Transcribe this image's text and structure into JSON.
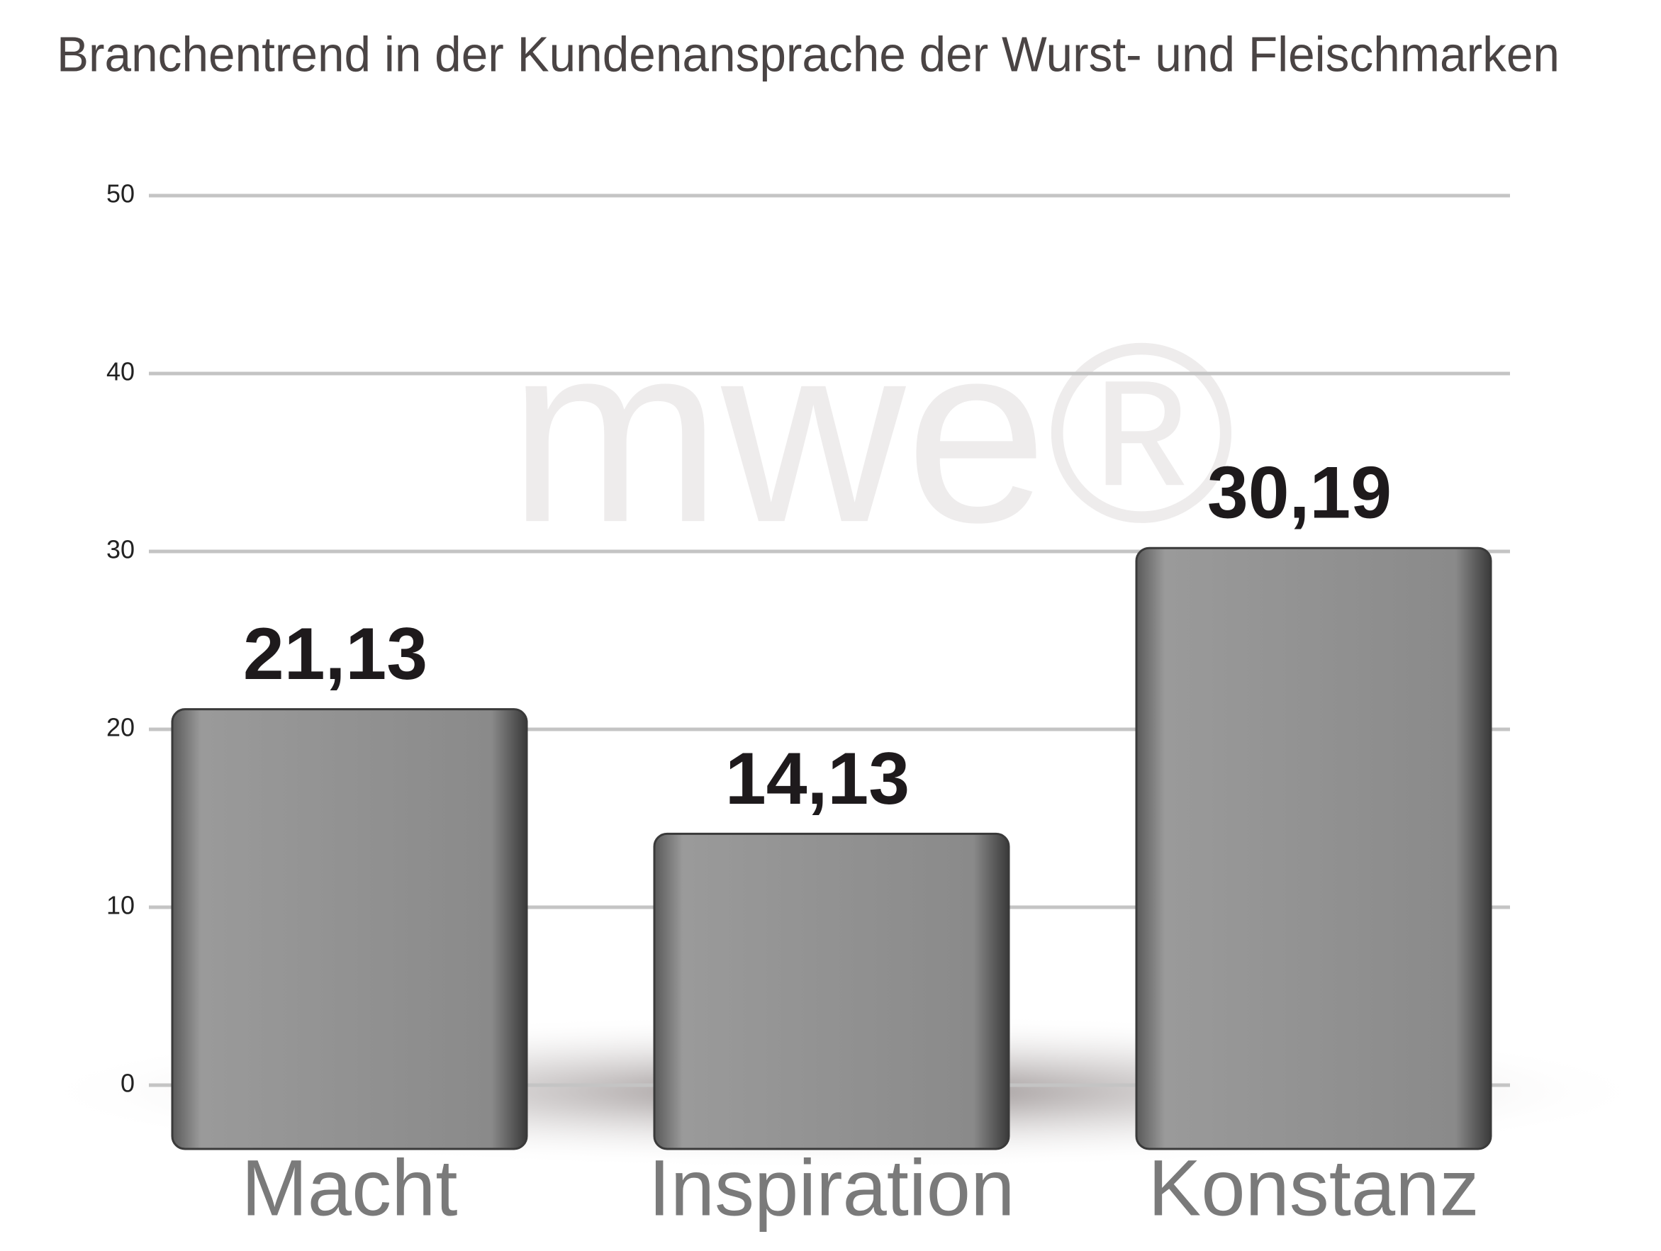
{
  "chart_data": {
    "type": "bar",
    "title": "Branchentrend in der Kundenansprache der Wurst- und Fleischmarken",
    "watermark": "mwe®",
    "categories": [
      "Macht",
      "Inspiration",
      "Konstanz"
    ],
    "values": [
      21.13,
      14.13,
      30.19
    ],
    "value_labels": [
      "21,13",
      "14,13",
      "30,19"
    ],
    "color": "#8e8e8e",
    "ylim": [
      0,
      50
    ],
    "yticks": [
      0,
      10,
      20,
      30,
      40,
      50
    ],
    "grid": true
  }
}
